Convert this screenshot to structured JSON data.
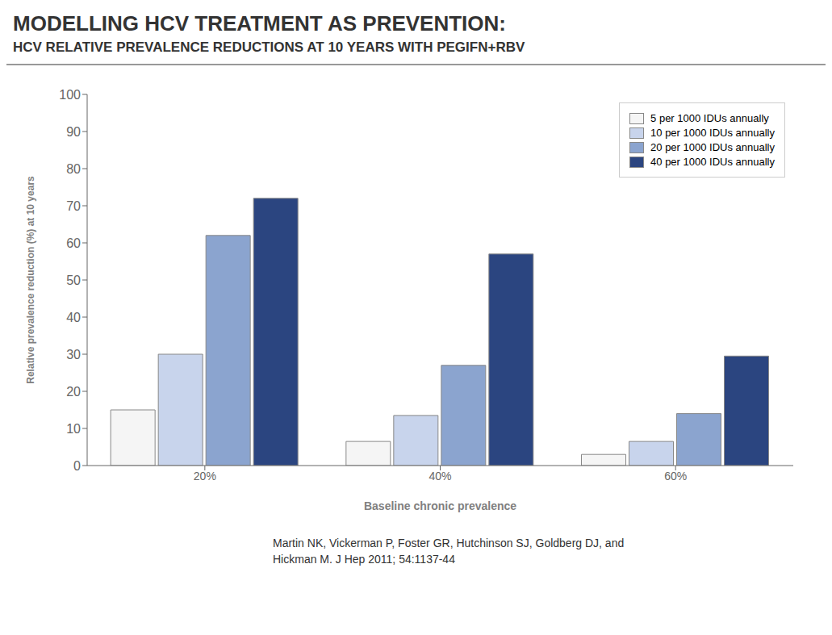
{
  "chart_data": {
    "type": "bar",
    "title": "MODELLING HCV TREATMENT AS PREVENTION:",
    "subtitle": "HCV RELATIVE PREVALENCE REDUCTIONS AT 10 YEARS WITH PEGIFN+RBV",
    "categories": [
      "20%",
      "40%",
      "60%"
    ],
    "xlabel": "Baseline chronic prevalence",
    "ylabel": "Relative prevalence reduction (%) at 10 years",
    "ylim": [
      0,
      100
    ],
    "yticks": [
      0,
      10,
      20,
      30,
      40,
      50,
      60,
      70,
      80,
      90,
      100
    ],
    "series": [
      {
        "name": "5 per 1000 IDUs annually",
        "color": "#f5f5f5",
        "values": [
          15,
          6.5,
          3
        ]
      },
      {
        "name": "10 per 1000 IDUs annually",
        "color": "#c8d4ec",
        "values": [
          30,
          13.5,
          6.5
        ]
      },
      {
        "name": "20 per 1000 IDUs annually",
        "color": "#8ba4cf",
        "values": [
          62,
          27,
          14
        ]
      },
      {
        "name": "40 per 1000 IDUs annually",
        "color": "#2b4580",
        "values": [
          72,
          57,
          29.5
        ]
      }
    ],
    "grid": false,
    "legend": "upper right",
    "annotations": [
      "Martin NK, Vickerman P, Foster GR, Hutchinson SJ, Goldberg DJ, and",
      "Hickman M. J Hep 2011; 54:1137-44"
    ]
  }
}
